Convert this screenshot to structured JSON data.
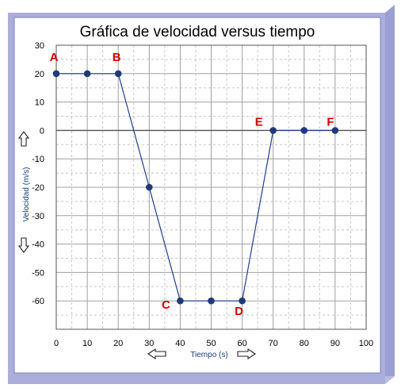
{
  "colors": {
    "frame_outer": "#aeb2dc",
    "frame_inner": "#7d80b8",
    "line": "#1f3d8c",
    "marker": "#1f3a78",
    "annotation": "#d40000",
    "axis_label": "#1a3c7a"
  },
  "icons": {
    "up": "up-arrow-icon",
    "down": "down-arrow-icon",
    "left": "left-arrow-icon",
    "right": "right-arrow-icon"
  },
  "chart_data": {
    "type": "line",
    "title": "Gráfica de velocidad versus tiempo",
    "xlabel": "Tiempo (s)",
    "ylabel": "Velocidad (m/s)",
    "xlim": [
      0,
      100
    ],
    "ylim": [
      -70,
      30
    ],
    "xticks": [
      0,
      10,
      20,
      30,
      40,
      50,
      60,
      70,
      80,
      90,
      100
    ],
    "yticks": [
      30,
      20,
      10,
      0,
      -10,
      -20,
      -30,
      -40,
      -50,
      -60
    ],
    "grid": true,
    "series": [
      {
        "x": [
          0,
          10,
          20,
          30,
          40,
          50,
          60,
          70,
          80,
          90
        ],
        "y": [
          20,
          20,
          20,
          -20,
          -60,
          -60,
          -60,
          0,
          0,
          0
        ]
      }
    ],
    "annotations": [
      {
        "text": "A",
        "x": 0,
        "y": 20
      },
      {
        "text": "B",
        "x": 20,
        "y": 20
      },
      {
        "text": "C",
        "x": 40,
        "y": -60
      },
      {
        "text": "D",
        "x": 60,
        "y": -60
      },
      {
        "text": "E",
        "x": 70,
        "y": 0
      },
      {
        "text": "F",
        "x": 90,
        "y": 0
      }
    ]
  }
}
